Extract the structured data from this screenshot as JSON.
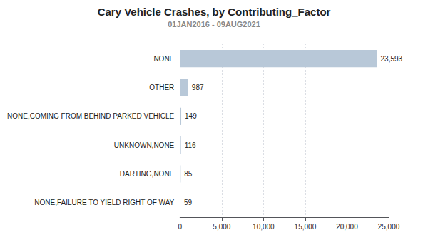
{
  "chart_data": {
    "type": "bar",
    "orientation": "horizontal",
    "title": "Cary Vehicle Crashes, by Contributing_Factor",
    "subtitle": "01JAN2016 - 09AUG2021",
    "categories": [
      "NONE,FAILURE TO YIELD RIGHT OF WAY",
      "DARTING,NONE",
      "UNKNOWN,NONE",
      "NONE,COMING FROM BEHIND PARKED VEHICLE",
      "OTHER",
      "NONE"
    ],
    "values": [
      59,
      85,
      116,
      149,
      987,
      23593
    ],
    "value_labels": [
      "59",
      "85",
      "116",
      "149",
      "987",
      "23,593"
    ],
    "data_labels": true,
    "color": "#b8c8d8",
    "xlim": [
      0,
      25000
    ],
    "xticks": [
      0,
      {
        "value": 5000,
        "label": "5,000"
      },
      {
        "value": 10000,
        "label": "10,000"
      },
      {
        "value": 15000,
        "label": "15,000"
      },
      {
        "value": 20000,
        "label": "20,000"
      },
      {
        "value": 25000,
        "label": "25,000"
      }
    ],
    "grid": true
  }
}
